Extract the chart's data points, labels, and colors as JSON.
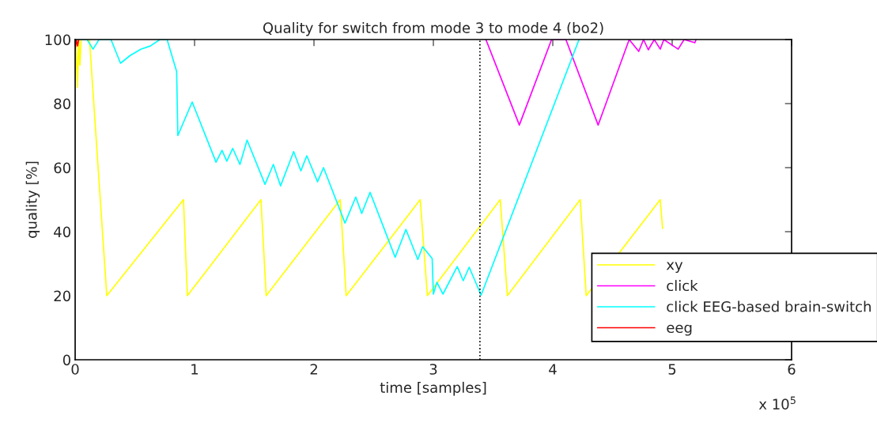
{
  "chart_data": {
    "type": "line",
    "title": "Quality for switch from mode 3 to mode 4 (bo2)",
    "xlabel": "time [samples]",
    "ylabel": "quality [%]",
    "xlim": [
      0,
      6
    ],
    "xticks": [
      0,
      1,
      2,
      3,
      4,
      5,
      6
    ],
    "ylim": [
      0,
      100
    ],
    "yticks": [
      0,
      20,
      40,
      60,
      80,
      100
    ],
    "grid": false,
    "legend": "bottom right",
    "annotations": [
      "x 10$^{5}$"
    ],
    "ref_lines": [
      {
        "axis": "x",
        "value": 3.39,
        "color": "#000000",
        "line_style": "dotted"
      }
    ],
    "series": [
      {
        "name": "xy",
        "color": "#ffff00",
        "x": [
          0,
          0.005,
          0.02,
          0.03,
          0.04,
          0.05,
          0.1,
          0.12,
          0.265,
          0.907,
          0.94,
          1.556,
          1.6,
          2.22,
          2.27,
          2.89,
          2.95,
          3.56,
          3.62,
          4.23,
          4.28,
          4.9,
          4.92
        ],
        "values": [
          88,
          100,
          85,
          100,
          92,
          100,
          100,
          100,
          20,
          50,
          20,
          50,
          20,
          50,
          20,
          50,
          20,
          50,
          20,
          50,
          20,
          50,
          41
        ]
      },
      {
        "name": "click",
        "color": "#ff00ff",
        "x": [
          3.44,
          3.72,
          3.99,
          4.11,
          4.38,
          4.64,
          4.72,
          4.76,
          4.8,
          4.85,
          4.9,
          4.93,
          5.05,
          5.1,
          5.19,
          5.2
        ],
        "values": [
          100,
          73.3,
          100,
          100,
          73.3,
          100,
          96.3,
          100,
          96.8,
          100,
          97,
          100,
          97,
          100,
          99,
          100
        ]
      },
      {
        "name": "click EEG-based brain-switch",
        "color": "#00ffff",
        "x": [
          0,
          0.1,
          0.15,
          0.2,
          0.3,
          0.38,
          0.46,
          0.55,
          0.63,
          0.71,
          0.77,
          0.85,
          0.86,
          0.98,
          1.18,
          1.23,
          1.27,
          1.32,
          1.38,
          1.44,
          1.59,
          1.66,
          1.72,
          1.83,
          1.89,
          1.94,
          2.03,
          2.08,
          2.26,
          2.35,
          2.4,
          2.47,
          2.68,
          2.77,
          2.87,
          2.91,
          2.99,
          3.0,
          3.03,
          3.08,
          3.2,
          3.25,
          3.3,
          3.4,
          4.22
        ],
        "values": [
          100,
          100,
          97,
          100,
          100,
          92.6,
          95,
          97,
          98,
          100,
          100,
          90,
          70,
          80.5,
          61.7,
          65.4,
          62,
          66,
          61,
          68.6,
          54.8,
          61,
          54.3,
          65,
          59,
          63.7,
          55.6,
          60,
          42.7,
          50.8,
          45.7,
          52.3,
          32,
          40.7,
          31.3,
          35.3,
          31.6,
          20.5,
          24.2,
          20.5,
          29.1,
          24.7,
          28.9,
          20.2,
          100
        ]
      },
      {
        "name": "eeg",
        "color": "#ff0000",
        "x": [
          0,
          0.01,
          0.02,
          0.03
        ],
        "values": [
          97,
          100,
          98,
          100
        ]
      }
    ]
  }
}
